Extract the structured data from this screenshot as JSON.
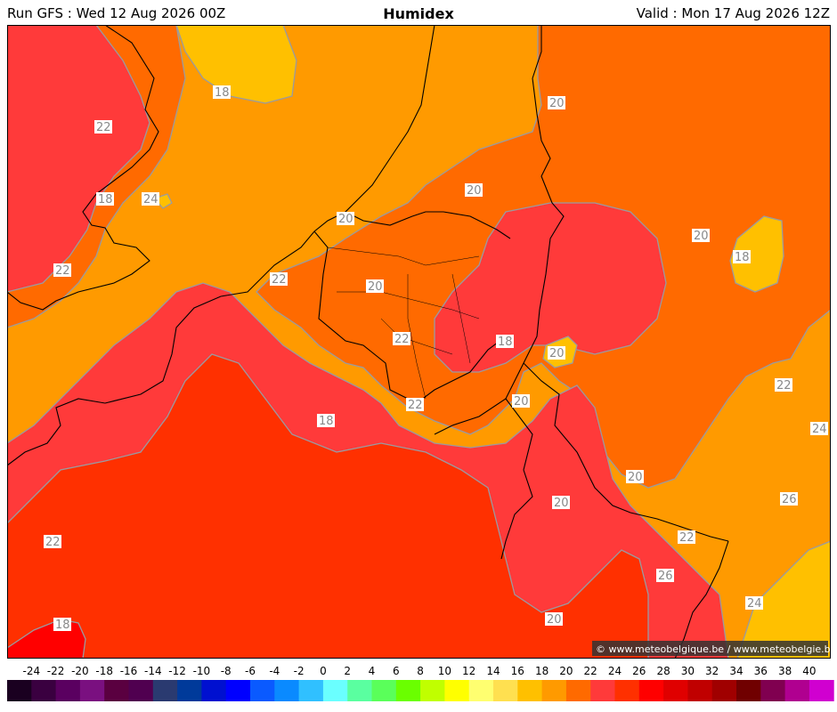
{
  "header": {
    "run": "Run GFS : Wed 12 Aug 2026 00Z",
    "title": "Humidex",
    "valid": "Valid : Mon 17 Aug 2026 12Z"
  },
  "credit": "© www.meteobelgique.be / www.meteobelgie.be",
  "contour_labels": [
    "18",
    "22",
    "20",
    "18",
    "24",
    "20",
    "20",
    "20",
    "18",
    "22",
    "22",
    "20",
    "22",
    "18",
    "20",
    "22",
    "20",
    "22",
    "18",
    "24",
    "20",
    "20",
    "26",
    "22",
    "22",
    "26",
    "18",
    "24",
    "20"
  ],
  "legend": {
    "ticks": [
      "-24",
      "-22",
      "-20",
      "-18",
      "-16",
      "-14",
      "-12",
      "-10",
      "-8",
      "-6",
      "-4",
      "-2",
      "0",
      "2",
      "4",
      "6",
      "8",
      "10",
      "12",
      "14",
      "16",
      "18",
      "20",
      "22",
      "24",
      "26",
      "28",
      "30",
      "32",
      "34",
      "36",
      "38",
      "40"
    ],
    "colors": [
      "#1a0020",
      "#3a0040",
      "#5a0060",
      "#7a1080",
      "#5a0040",
      "#500050",
      "#2a3a70",
      "#003a9a",
      "#0010d0",
      "#0000ff",
      "#0a5aff",
      "#0a8aff",
      "#30c0ff",
      "#6affff",
      "#5affa0",
      "#5aff5a",
      "#6aff00",
      "#c0ff00",
      "#ffff00",
      "#ffff70",
      "#ffe050",
      "#ffc000",
      "#ff9a00",
      "#ff6a00",
      "#ff3a3a",
      "#ff3000",
      "#ff0000",
      "#e00000",
      "#c00000",
      "#a00000",
      "#700000",
      "#800050",
      "#b00090",
      "#d000d0"
    ]
  },
  "palette": {
    "c18": "#ffc000",
    "c20": "#ff9a00",
    "c22": "#ff6a00",
    "c24": "#ff3a3a",
    "c26": "#ff3000",
    "contour": "#9a9aa0",
    "border": "#000000"
  }
}
